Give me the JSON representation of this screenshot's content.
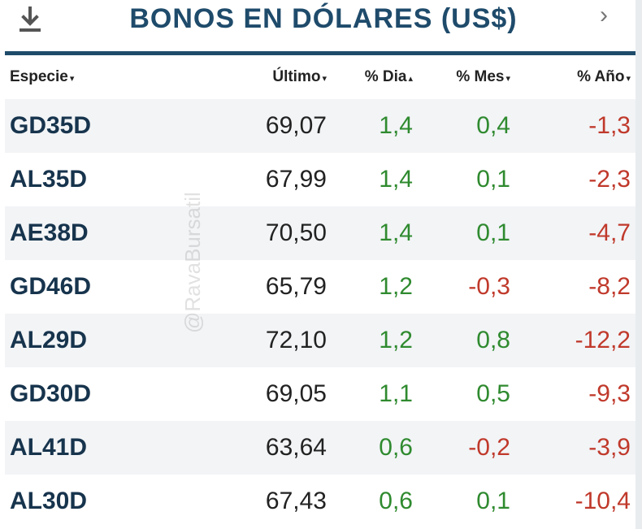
{
  "header": {
    "title": "BONOS EN DÓLARES (US$)",
    "download_icon": "download-icon",
    "next_icon": "chevron-right-icon"
  },
  "columns": [
    {
      "label": "Especie",
      "arrow": "▾"
    },
    {
      "label": "Último",
      "arrow": "▾"
    },
    {
      "label": "% Dia",
      "arrow": "▴"
    },
    {
      "label": "% Mes",
      "arrow": "▾"
    },
    {
      "label": "% Año",
      "arrow": "▾"
    }
  ],
  "rows": [
    {
      "especie": "GD35D",
      "ultimo": "69,07",
      "dia": "1,4",
      "mes": "0,4",
      "anio": "-1,3"
    },
    {
      "especie": "AL35D",
      "ultimo": "67,99",
      "dia": "1,4",
      "mes": "0,1",
      "anio": "-2,3"
    },
    {
      "especie": "AE38D",
      "ultimo": "70,50",
      "dia": "1,4",
      "mes": "0,1",
      "anio": "-4,7"
    },
    {
      "especie": "GD46D",
      "ultimo": "65,79",
      "dia": "1,2",
      "mes": "-0,3",
      "anio": "-8,2"
    },
    {
      "especie": "AL29D",
      "ultimo": "72,10",
      "dia": "1,2",
      "mes": "0,8",
      "anio": "-12,2"
    },
    {
      "especie": "GD30D",
      "ultimo": "69,05",
      "dia": "1,1",
      "mes": "0,5",
      "anio": "-9,3"
    },
    {
      "especie": "AL41D",
      "ultimo": "63,64",
      "dia": "0,6",
      "mes": "-0,2",
      "anio": "-3,9"
    },
    {
      "especie": "AL30D",
      "ultimo": "67,43",
      "dia": "0,6",
      "mes": "0,1",
      "anio": "-10,4"
    }
  ],
  "watermark": "@RavaBursatil",
  "colors": {
    "brand": "#1f4b6b",
    "positive": "#2f8a2f",
    "negative": "#c0392b",
    "stripe": "#f2f4f6"
  }
}
